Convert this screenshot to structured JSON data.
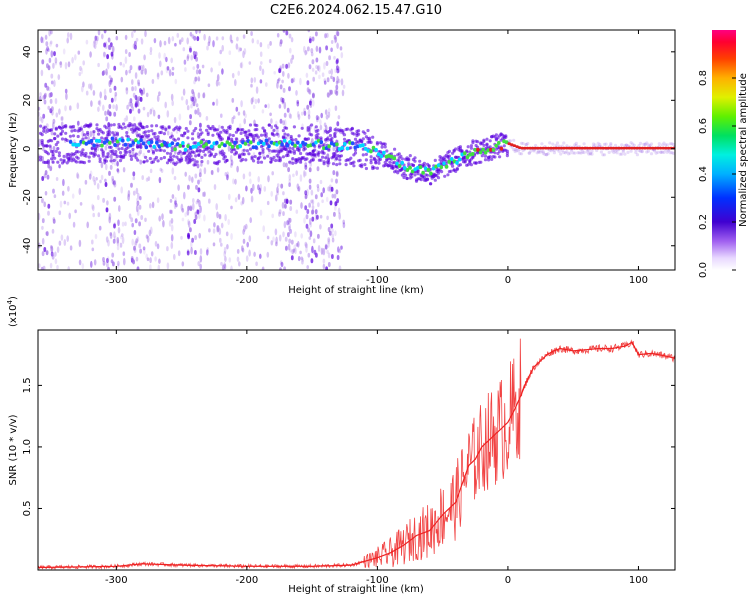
{
  "title": "C2E6.2024.062.15.47.G10",
  "chart_data": [
    {
      "type": "heatmap",
      "xlabel": "Height of straight line (km)",
      "ylabel": "Frequency (Hz)",
      "xlim": [
        -360,
        128
      ],
      "ylim": [
        -50,
        49
      ],
      "xticks": [
        -300,
        -200,
        -100,
        0,
        100
      ],
      "yticks": [
        -40,
        -20,
        0,
        20,
        40
      ],
      "colorbar": {
        "label": "Normalized spectral amplitude",
        "range": [
          0,
          1
        ],
        "ticks": [
          "0.0",
          "0.2",
          "0.4",
          "0.6",
          "0.8"
        ]
      },
      "ridge": {
        "x": [
          -330,
          -300,
          -250,
          -200,
          -150,
          -120,
          -100,
          -80,
          -60,
          -45,
          -30,
          -15,
          0,
          10,
          50,
          128
        ],
        "frequency": [
          2,
          3,
          1,
          2,
          2,
          1,
          -1,
          -7,
          -10,
          -6,
          -2,
          0,
          2,
          0,
          0,
          0
        ]
      },
      "colors": {
        "low": "#a06ee6",
        "mid": "#5a00e0",
        "blue": "#2050ff",
        "cyan": "#00d8ff",
        "green": "#40e040",
        "red": "#e02020"
      }
    },
    {
      "type": "line",
      "xlabel": "Height of straight line (km)",
      "ylabel": "SNR (10 * v/v)",
      "multiplier": "(x10",
      "multiplier_exp": "4",
      "multiplier_close": ")",
      "xlim": [
        -360,
        128
      ],
      "ylim": [
        0,
        1.95
      ],
      "xticks": [
        -300,
        -200,
        -100,
        0,
        100
      ],
      "yticks": [
        "0.5",
        "1.0",
        "1.5"
      ],
      "color": "#ee2222",
      "series": [
        {
          "x": [
            -360,
            -300,
            -280,
            -250,
            -200,
            -150,
            -120,
            -100,
            -90,
            -80,
            -70,
            -60,
            -50,
            -40,
            -35,
            -30,
            -25,
            -20,
            -15,
            -10,
            -5,
            0,
            5,
            10,
            15,
            20,
            25,
            30,
            35,
            40,
            50,
            60,
            70,
            80,
            90,
            95,
            100,
            110,
            120,
            128
          ],
          "y": [
            0.02,
            0.03,
            0.05,
            0.04,
            0.03,
            0.03,
            0.04,
            0.1,
            0.14,
            0.2,
            0.28,
            0.32,
            0.45,
            0.55,
            0.7,
            0.85,
            0.9,
            1.0,
            1.05,
            1.1,
            1.15,
            1.2,
            1.3,
            1.42,
            1.55,
            1.65,
            1.7,
            1.75,
            1.78,
            1.8,
            1.78,
            1.79,
            1.8,
            1.8,
            1.82,
            1.85,
            1.75,
            1.76,
            1.74,
            1.72
          ]
        }
      ]
    }
  ]
}
